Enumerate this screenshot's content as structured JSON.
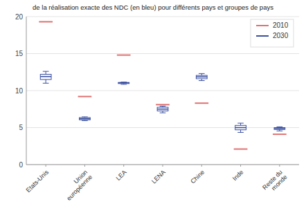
{
  "chart_data": {
    "type": "box",
    "subtitle": "de la réalisation exacte des NDC (en bleu) pour différents pays et groupes de pays",
    "categories": [
      "Etats-Unis",
      "Union\neuropéenne",
      "LEA",
      "LENA",
      "Chine",
      "Inde",
      "Reste du\nmonde"
    ],
    "series": [
      {
        "name": "2010",
        "type": "marker",
        "marker": "hline",
        "color": "#e07070",
        "values": [
          19.3,
          9.2,
          14.8,
          8.1,
          8.3,
          2.1,
          4.1
        ]
      },
      {
        "name": "2030",
        "type": "box",
        "color": "#3a4fa0",
        "boxes": [
          {
            "low": 11.0,
            "q1": 11.5,
            "median": 11.9,
            "q3": 12.2,
            "high": 12.6
          },
          {
            "low": 5.95,
            "q1": 6.05,
            "median": 6.2,
            "q3": 6.35,
            "high": 6.45
          },
          {
            "low": 10.85,
            "q1": 10.95,
            "median": 11.05,
            "q3": 11.1,
            "high": 11.15
          },
          {
            "low": 7.0,
            "q1": 7.25,
            "median": 7.5,
            "q3": 7.75,
            "high": 7.9
          },
          {
            "low": 11.35,
            "q1": 11.6,
            "median": 11.85,
            "q3": 12.05,
            "high": 12.3
          },
          {
            "low": 4.35,
            "q1": 4.7,
            "median": 5.0,
            "q3": 5.3,
            "high": 5.6
          },
          {
            "low": 4.55,
            "q1": 4.75,
            "median": 4.85,
            "q3": 5.0,
            "high": 5.1
          }
        ]
      }
    ],
    "ylim": [
      0,
      20
    ],
    "yticks": [
      0,
      5,
      10,
      15,
      20
    ],
    "grid": true,
    "legend": "upper right"
  }
}
